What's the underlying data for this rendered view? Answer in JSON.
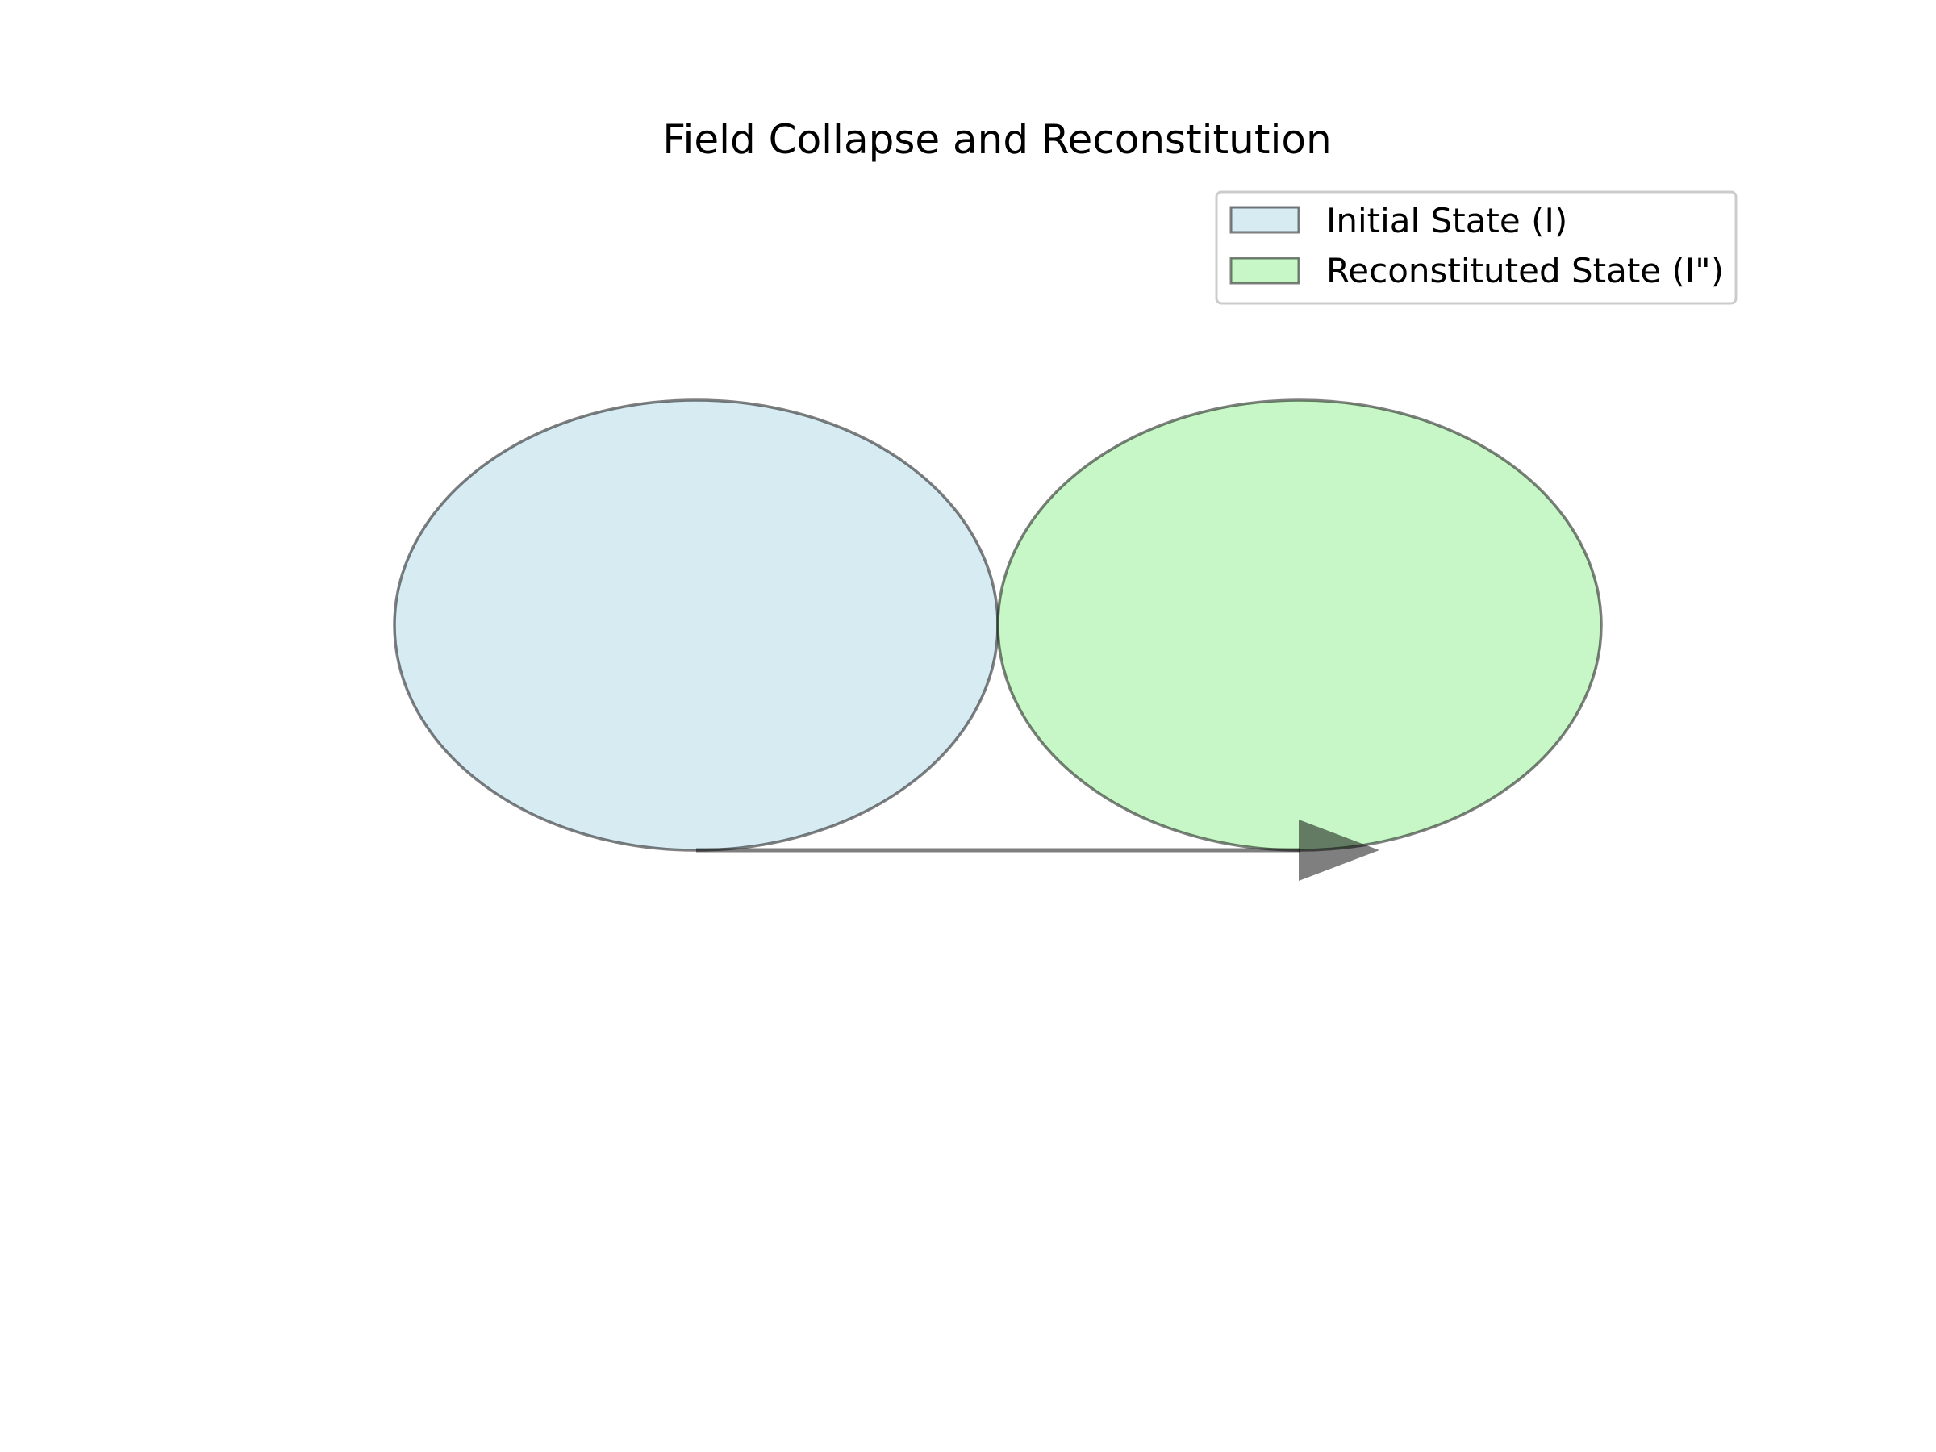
{
  "title": "Field Collapse and Reconstitution",
  "legend": {
    "placement": "upper-right",
    "items": [
      {
        "label": "Initial State (I)",
        "color": "#add8e6"
      },
      {
        "label": "Reconstituted State (I\")",
        "color": "#90ee90"
      }
    ]
  },
  "shapes": {
    "initial_state": {
      "fill": "#add8e6",
      "fill_opacity": 0.5,
      "stroke": "#000000",
      "stroke_opacity": 0.5
    },
    "reconstituted_state": {
      "fill": "#90ee90",
      "fill_opacity": 0.5,
      "stroke": "#000000",
      "stroke_opacity": 0.5
    }
  },
  "arrow": {
    "from": "initial-state",
    "to": "reconstituted-state",
    "color": "#000000",
    "opacity": 0.5
  }
}
